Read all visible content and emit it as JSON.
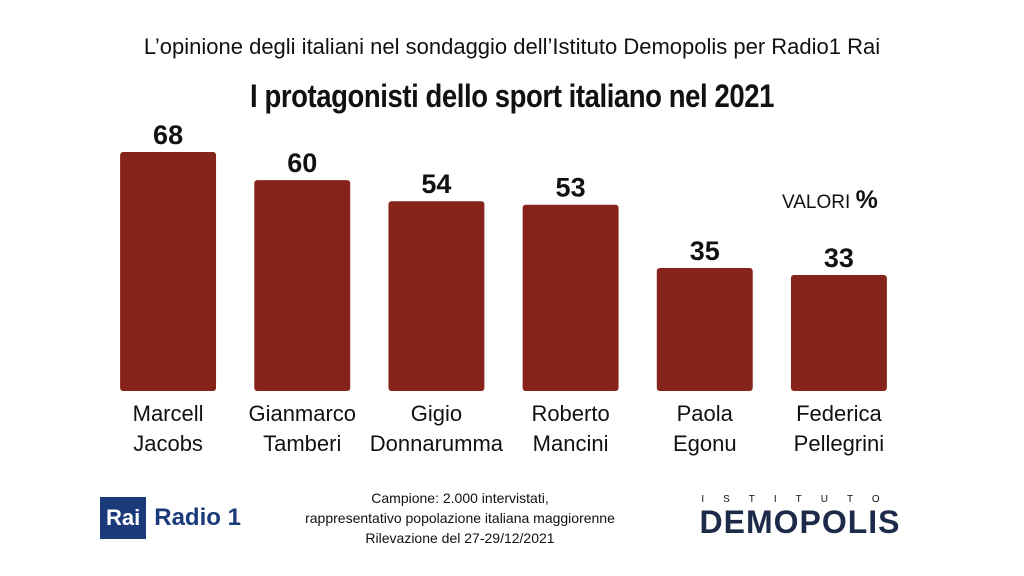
{
  "header": {
    "subtitle": "L’opinione degli italiani nel sondaggio dell’Istituto Demopolis per Radio1 Rai",
    "title": "I protagonisti dello sport italiano nel 2021"
  },
  "units": {
    "label": "VALORI",
    "symbol": "%"
  },
  "chart_data": {
    "type": "bar",
    "title": "I protagonisti dello sport italiano nel 2021",
    "xlabel": "",
    "ylabel": "",
    "ylim": [
      0,
      70
    ],
    "grid": false,
    "categories": [
      [
        "Marcell",
        "Jacobs"
      ],
      [
        "Gianmarco",
        "Tamberi"
      ],
      [
        "Gigio",
        "Donnarumma"
      ],
      [
        "Roberto",
        "Mancini"
      ],
      [
        "Paola",
        "Egonu"
      ],
      [
        "Federica",
        "Pellegrini"
      ]
    ],
    "values": [
      68,
      60,
      54,
      53,
      35,
      33
    ],
    "bar_color": "#86231a"
  },
  "footer": {
    "rai_label": "Rai",
    "radio_label": "Radio 1",
    "note_lines": [
      "Campione: 2.000 intervistati,",
      "rappresentativo popolazione italiana maggiorenne",
      "Rilevazione del 27-29/12/2021"
    ],
    "demopolis_top": "ISTITUTO",
    "demopolis_name": "DEMOPOLIS"
  }
}
